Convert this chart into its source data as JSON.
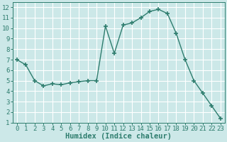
{
  "x": [
    0,
    1,
    2,
    3,
    4,
    5,
    6,
    7,
    8,
    9,
    10,
    11,
    12,
    13,
    14,
    15,
    16,
    17,
    18,
    19,
    20,
    21,
    22,
    23
  ],
  "y": [
    7.0,
    6.5,
    5.0,
    4.5,
    4.7,
    4.6,
    4.8,
    4.9,
    5.0,
    5.0,
    10.2,
    7.6,
    10.3,
    10.5,
    11.0,
    11.6,
    11.8,
    11.4,
    9.5,
    7.0,
    5.0,
    3.8,
    2.6,
    1.4
  ],
  "xlabel": "Humidex (Indice chaleur)",
  "xlim": [
    -0.5,
    23.5
  ],
  "ylim": [
    1,
    12.5
  ],
  "yticks": [
    1,
    2,
    3,
    4,
    5,
    6,
    7,
    8,
    9,
    10,
    11,
    12
  ],
  "xticks": [
    0,
    1,
    2,
    3,
    4,
    5,
    6,
    7,
    8,
    9,
    10,
    11,
    12,
    13,
    14,
    15,
    16,
    17,
    18,
    19,
    20,
    21,
    22,
    23
  ],
  "line_color": "#2e7d6e",
  "bg_color": "#cce8e8",
  "grid_color": "#ffffff",
  "label_color": "#2e7d6e",
  "tick_color": "#2e7d6e",
  "font_family": "monospace",
  "label_fontsize": 7.5,
  "tick_fontsize": 6.5
}
